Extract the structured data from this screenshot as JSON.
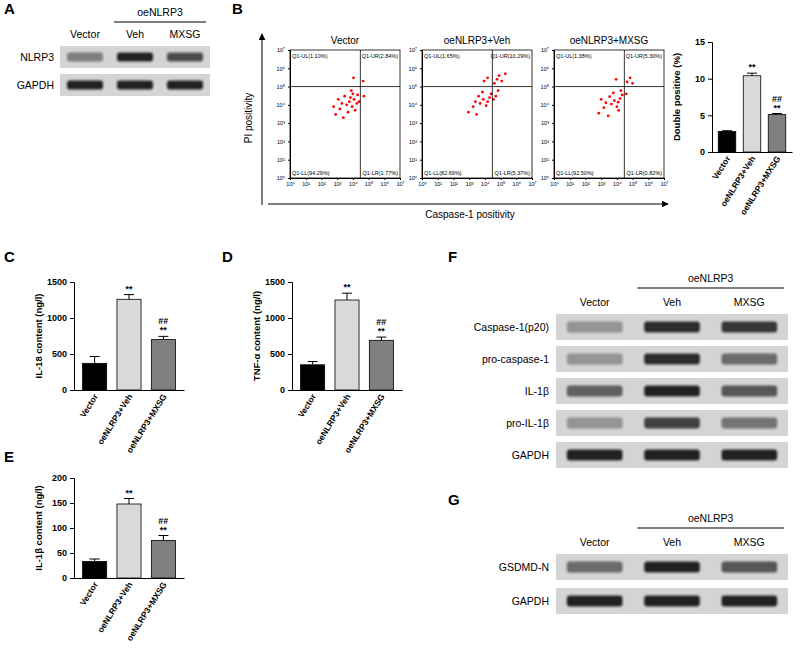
{
  "chart_data": [
    {
      "type": "bar",
      "categories": [
        "Vector",
        "oeNLRP3+Veh",
        "oeNLRP3+MXSG"
      ],
      "values": [
        2.8,
        10.4,
        5.1
      ],
      "errors": [
        0.1,
        0.35,
        0.15
      ],
      "significance": [
        [],
        [
          "**"
        ],
        [
          "##",
          "**"
        ]
      ],
      "colors": [
        "#000000",
        "#d9d9d9",
        "#808080"
      ],
      "y_label": "Double positive (%)",
      "ylim": [
        0,
        15
      ],
      "yticks": [
        0,
        5,
        10,
        15
      ]
    },
    {
      "type": "bar",
      "panel": "C",
      "categories": [
        "Vector",
        "oeNLRP3+Veh",
        "oeNLRP3+MXSG"
      ],
      "values": [
        370,
        1260,
        700
      ],
      "errors": [
        95,
        65,
        45
      ],
      "significance": [
        [],
        [
          "**"
        ],
        [
          "##",
          "**"
        ]
      ],
      "colors": [
        "#000000",
        "#d9d9d9",
        "#808080"
      ],
      "y_label": "IL-18 content (ng/l)",
      "ylim": [
        0,
        1500
      ],
      "yticks": [
        0,
        500,
        1000,
        1500
      ]
    },
    {
      "type": "bar",
      "panel": "D",
      "categories": [
        "Vector",
        "oeNLRP3+Veh",
        "oeNLRP3+MXSG"
      ],
      "values": [
        350,
        1250,
        690
      ],
      "errors": [
        45,
        95,
        45
      ],
      "significance": [
        [],
        [
          "**"
        ],
        [
          "##",
          "**"
        ]
      ],
      "colors": [
        "#000000",
        "#d9d9d9",
        "#808080"
      ],
      "y_label": "TNF-α content (ng/l)",
      "ylim": [
        0,
        1500
      ],
      "yticks": [
        0,
        500,
        1000,
        1500
      ]
    },
    {
      "type": "bar",
      "panel": "E",
      "categories": [
        "Vector",
        "oeNLRP3+Veh",
        "oeNLRP3+MXSG"
      ],
      "values": [
        33,
        148,
        75
      ],
      "errors": [
        5,
        11,
        10
      ],
      "significance": [
        [],
        [
          "**"
        ],
        [
          "##",
          "**"
        ]
      ],
      "colors": [
        "#000000",
        "#d9d9d9",
        "#808080"
      ],
      "y_label": "IL-1β content (ng/l)",
      "ylim": [
        0,
        200
      ],
      "yticks": [
        0,
        50,
        100,
        150,
        200
      ]
    }
  ],
  "flow": {
    "panel": "B",
    "x_label": "Caspase-1 positivity",
    "y_label": "PI positivity",
    "plots": [
      {
        "type": "scatter",
        "title": "Vector",
        "log": true,
        "color": "#ff0000",
        "xlim": [
          1,
          10000000
        ],
        "ylim": [
          1,
          10000000
        ],
        "xticks": [
          {
            "value": 1,
            "label": "10⁰"
          },
          {
            "value": 10,
            "label": "10¹"
          },
          {
            "value": 100,
            "label": "10²"
          },
          {
            "value": 1000,
            "label": "10³"
          },
          {
            "value": 10000,
            "label": "10⁴"
          },
          {
            "value": 100000,
            "label": "10⁵"
          },
          {
            "value": 1000000,
            "label": "10⁶"
          },
          {
            "value": 10000000,
            "label": "10⁷"
          }
        ],
        "yticks": [
          {
            "value": 1,
            "label": "10⁰"
          },
          {
            "value": 10,
            "label": "10¹"
          },
          {
            "value": 100,
            "label": "10²"
          },
          {
            "value": 1000,
            "label": "10³"
          },
          {
            "value": 10000,
            "label": "10⁴"
          },
          {
            "value": 100000,
            "label": "10⁵"
          },
          {
            "value": 1000000,
            "label": "10⁶"
          },
          {
            "value": 10000000,
            "label": "10⁷"
          }
        ],
        "gate": {
          "x": 30000,
          "y": 100000
        },
        "quadrant_labels": [
          "Q1-UL(1.10%)",
          "Q1-UR(2.84%)",
          "Q1-LL(94.29%)",
          "Q1-LR(1.77%)"
        ],
        "x": [
          800,
          1500,
          2500,
          4000,
          6000,
          9000,
          12000,
          18000,
          3000,
          5000,
          7000,
          10000,
          2000,
          14000,
          20000,
          1200,
          25000,
          600,
          45000,
          8000,
          50000,
          11000
        ],
        "y": [
          3000,
          6000,
          2000,
          10000,
          15000,
          8000,
          20000,
          12000,
          30000,
          4000,
          25000,
          40000,
          12000,
          5000,
          35000,
          20000,
          15000,
          8000,
          200000,
          60000,
          30000,
          300000
        ]
      },
      {
        "type": "scatter",
        "title": "oeNLRP3+Veh",
        "log": true,
        "color": "#ff0000",
        "xlim": [
          1,
          10000000
        ],
        "ylim": [
          1,
          10000000
        ],
        "xticks": [
          {
            "value": 1,
            "label": "10⁰"
          },
          {
            "value": 10,
            "label": "10¹"
          },
          {
            "value": 100,
            "label": "10²"
          },
          {
            "value": 1000,
            "label": "10³"
          },
          {
            "value": 10000,
            "label": "10⁴"
          },
          {
            "value": 100000,
            "label": "10⁵"
          },
          {
            "value": 1000000,
            "label": "10⁶"
          },
          {
            "value": 10000000,
            "label": "10⁷"
          }
        ],
        "yticks": [
          {
            "value": 1,
            "label": "10⁰"
          },
          {
            "value": 10,
            "label": "10¹"
          },
          {
            "value": 100,
            "label": "10²"
          },
          {
            "value": 1000,
            "label": "10³"
          },
          {
            "value": 10000,
            "label": "10⁴"
          },
          {
            "value": 100000,
            "label": "10⁵"
          },
          {
            "value": 1000000,
            "label": "10⁶"
          },
          {
            "value": 10000000,
            "label": "10⁷"
          }
        ],
        "gate": {
          "x": 30000,
          "y": 100000
        },
        "quadrant_labels": [
          "Q1-UL(1.65%)",
          "Q1-UR(10.29%)",
          "Q1-LL(82.69%)",
          "Q1-LR(5.37%)"
        ],
        "x": [
          900,
          1800,
          3000,
          5000,
          8000,
          12000,
          20000,
          4000,
          7000,
          15000,
          25000,
          2500,
          40000,
          60000,
          80000,
          50000,
          120000,
          70000,
          200000,
          9000,
          15000,
          35000
        ],
        "y": [
          4000,
          8000,
          3000,
          12000,
          20000,
          9000,
          25000,
          30000,
          50000,
          15000,
          40000,
          15000,
          150000,
          250000,
          400000,
          30000,
          200000,
          60000,
          500000,
          200000,
          300000,
          20000
        ]
      },
      {
        "type": "scatter",
        "title": "oeNLRP3+MXSG",
        "log": true,
        "color": "#ff0000",
        "xlim": [
          1,
          10000000
        ],
        "ylim": [
          1,
          10000000
        ],
        "xticks": [
          {
            "value": 1,
            "label": "10⁰"
          },
          {
            "value": 10,
            "label": "10¹"
          },
          {
            "value": 100,
            "label": "10²"
          },
          {
            "value": 1000,
            "label": "10³"
          },
          {
            "value": 10000,
            "label": "10⁴"
          },
          {
            "value": 100000,
            "label": "10⁵"
          },
          {
            "value": 1000000,
            "label": "10⁶"
          },
          {
            "value": 10000000,
            "label": "10⁷"
          }
        ],
        "yticks": [
          {
            "value": 1,
            "label": "10⁰"
          },
          {
            "value": 10,
            "label": "10¹"
          },
          {
            "value": 100,
            "label": "10²"
          },
          {
            "value": 1000,
            "label": "10³"
          },
          {
            "value": 10000,
            "label": "10⁴"
          },
          {
            "value": 100000,
            "label": "10⁵"
          },
          {
            "value": 1000000,
            "label": "10⁶"
          },
          {
            "value": 10000000,
            "label": "10⁷"
          }
        ],
        "gate": {
          "x": 30000,
          "y": 100000
        },
        "quadrant_labels": [
          "Q1-UL(1.38%)",
          "Q1-UR(5.30%)",
          "Q1-LL(92.50%)",
          "Q1-LR(0.82%)"
        ],
        "x": [
          700,
          1500,
          2800,
          4500,
          7000,
          10000,
          16000,
          3500,
          6000,
          12000,
          22000,
          2000,
          45000,
          70000,
          9000,
          40000,
          1000,
          18000,
          100000,
          13000
        ],
        "y": [
          3500,
          7000,
          2500,
          11000,
          17000,
          8000,
          22000,
          28000,
          45000,
          14000,
          35000,
          13000,
          180000,
          300000,
          250000,
          40000,
          20000,
          60000,
          150000,
          5000
        ]
      }
    ]
  },
  "blots": [
    {
      "panel": "A",
      "group_label": "oeNLRP3",
      "lanes": [
        "Vector",
        "Veh",
        "MXSG"
      ],
      "rows": [
        {
          "label": "NLRP3",
          "intensity": [
            0.45,
            0.9,
            0.7
          ]
        },
        {
          "label": "GAPDH",
          "intensity": [
            0.9,
            0.9,
            0.9
          ]
        }
      ]
    },
    {
      "panel": "F",
      "group_label": "oeNLRP3",
      "lanes": [
        "Vector",
        "Veh",
        "MXSG"
      ],
      "rows": [
        {
          "label": "Caspase-1(p20)",
          "intensity": [
            0.35,
            0.85,
            0.8
          ]
        },
        {
          "label": "pro-caspase-1",
          "intensity": [
            0.35,
            0.85,
            0.55
          ]
        },
        {
          "label": "IL-1β",
          "intensity": [
            0.6,
            0.9,
            0.65
          ]
        },
        {
          "label": "pro-IL-1β",
          "intensity": [
            0.35,
            0.75,
            0.5
          ]
        },
        {
          "label": "GAPDH",
          "intensity": [
            0.9,
            0.9,
            0.9
          ]
        }
      ]
    },
    {
      "panel": "G",
      "group_label": "oeNLRP3",
      "lanes": [
        "Vector",
        "Veh",
        "MXSG"
      ],
      "rows": [
        {
          "label": "GSDMD-N",
          "intensity": [
            0.55,
            0.9,
            0.65
          ]
        },
        {
          "label": "GAPDH",
          "intensity": [
            0.9,
            0.9,
            0.9
          ]
        }
      ]
    }
  ]
}
